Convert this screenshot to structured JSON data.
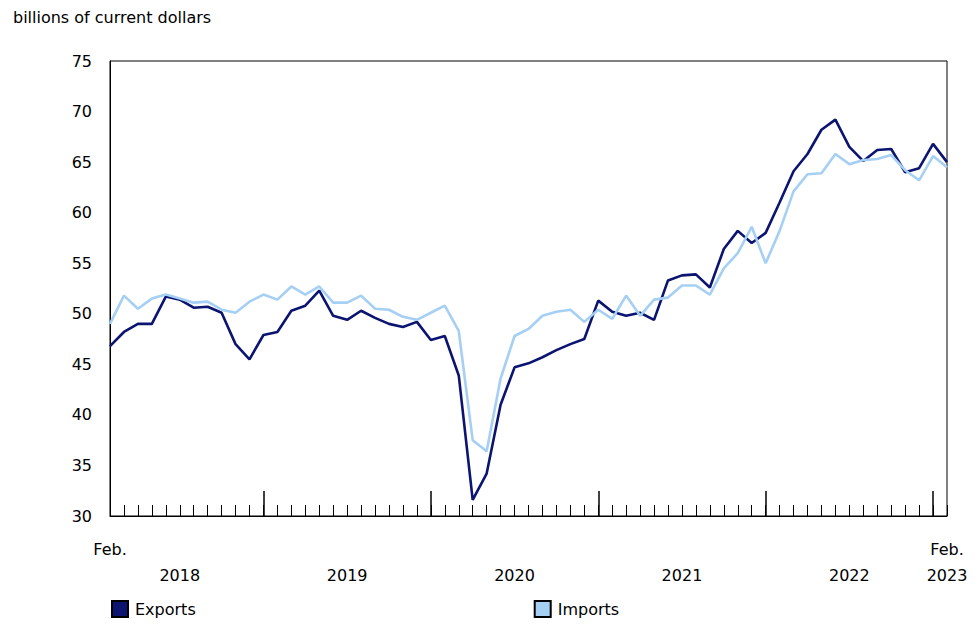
{
  "chart_data": {
    "type": "line",
    "title": "billions of current dollars",
    "categories": [
      "Feb.",
      null,
      null,
      null,
      null,
      "2018",
      null,
      null,
      null,
      null,
      null,
      null,
      null,
      null,
      null,
      null,
      null,
      "2019",
      null,
      null,
      null,
      null,
      null,
      null,
      null,
      null,
      null,
      null,
      null,
      "2020",
      null,
      null,
      null,
      null,
      null,
      null,
      null,
      null,
      null,
      null,
      null,
      "2021",
      null,
      null,
      null,
      null,
      null,
      null,
      null,
      null,
      null,
      null,
      null,
      "2022",
      null,
      null,
      null,
      null,
      null,
      null,
      "Feb.\n2023"
    ],
    "series": [
      {
        "name": "Exports",
        "color": "#0b1470",
        "values": [
          46.8,
          48.2,
          49.0,
          49.0,
          51.7,
          51.4,
          50.6,
          50.7,
          50.1,
          47.0,
          45.5,
          47.9,
          48.2,
          50.3,
          50.8,
          52.3,
          49.8,
          49.4,
          50.3,
          49.6,
          49.0,
          48.7,
          49.2,
          47.4,
          47.8,
          43.9,
          31.6,
          34.2,
          41.0,
          44.7,
          45.1,
          45.7,
          46.4,
          47.0,
          47.5,
          51.3,
          50.2,
          49.8,
          50.1,
          49.4,
          53.3,
          53.8,
          53.9,
          52.6,
          56.4,
          58.2,
          57.0,
          58.0,
          61.0,
          64.1,
          65.8,
          68.2,
          69.2,
          66.5,
          65.1,
          66.2,
          66.3,
          64.0,
          64.4,
          66.8,
          65.0
        ]
      },
      {
        "name": "Imports",
        "color": "#a6cff4",
        "values": [
          49.0,
          51.8,
          50.5,
          51.5,
          51.9,
          51.5,
          51.1,
          51.2,
          50.4,
          50.1,
          51.2,
          51.9,
          51.4,
          52.7,
          51.9,
          52.7,
          51.1,
          51.1,
          51.8,
          50.5,
          50.4,
          49.7,
          49.4,
          50.1,
          50.8,
          48.3,
          37.5,
          36.4,
          43.6,
          47.8,
          48.5,
          49.8,
          50.2,
          50.4,
          49.2,
          50.4,
          49.5,
          51.8,
          49.8,
          51.4,
          51.6,
          52.8,
          52.8,
          51.9,
          54.5,
          56.0,
          58.6,
          55.0,
          58.2,
          62.1,
          63.8,
          63.9,
          65.8,
          64.8,
          65.2,
          65.3,
          65.7,
          64.2,
          63.2,
          65.6,
          64.5
        ]
      }
    ],
    "ylim": [
      30,
      75
    ],
    "yticks": [
      30,
      35,
      40,
      45,
      50,
      55,
      60,
      65,
      70,
      75
    ],
    "grid": false,
    "legend": "bottom"
  }
}
